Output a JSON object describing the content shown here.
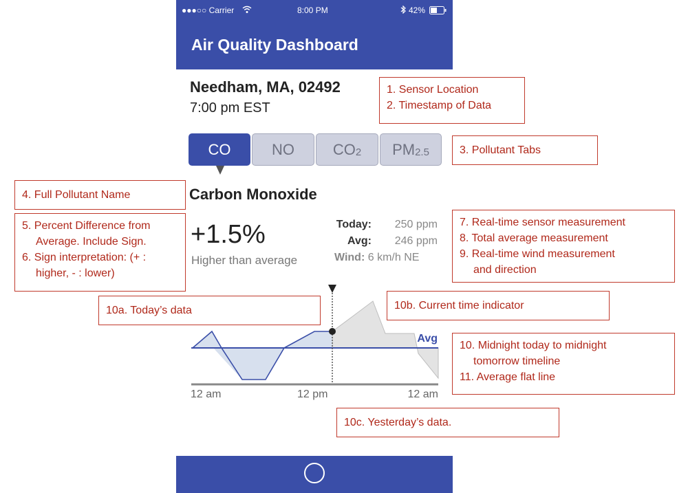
{
  "status_bar": {
    "carrier": "●●●○○ Carrier",
    "wifi_icon": "wifi-icon",
    "time": "8:00 PM",
    "battery": "42%"
  },
  "app": {
    "title": "Air Quality Dashboard"
  },
  "location": {
    "name": "Needham, MA, 02492",
    "timestamp": "7:00 pm EST"
  },
  "tabs": [
    {
      "label": "CO",
      "active": true
    },
    {
      "label": "NO",
      "active": false
    },
    {
      "label": "CO",
      "sub": "2",
      "active": false
    },
    {
      "label": "PM",
      "sub": "2.5",
      "active": false
    }
  ],
  "pollutant": {
    "full_name": "Carbon Monoxide",
    "percent_diff": "+1.5%",
    "description": "Higher than average"
  },
  "measurements": {
    "today_label": "Today:",
    "today_value": "250 ppm",
    "avg_label": "Avg:",
    "avg_value": "246 ppm",
    "wind_label": "Wind:",
    "wind_value": "6 km/h NE"
  },
  "chart": {
    "avg_label": "Avg",
    "x_labels": [
      "12 am",
      "12 pm",
      "12 am"
    ],
    "colors": {
      "today": "#3a4ea8",
      "today_fill": "#d7e0ee",
      "yesterday_fill": "#e3e3e3",
      "yesterday_line": "#bdbdbd",
      "avg": "#3a4ea8"
    }
  },
  "annotations": {
    "a1": [
      "1. Sensor Location",
      "2. Timestamp of Data"
    ],
    "a3": "3. Pollutant Tabs",
    "a4": "4. Full Pollutant Name",
    "a5": [
      "5. Percent Difference from",
      "Average. Include Sign.",
      "6. Sign interpretation: (+ :",
      "higher, - : lower)"
    ],
    "a7": [
      "7. Real-time sensor measurement",
      "8. Total average measurement",
      "9. Real-time wind measurement",
      "and direction"
    ],
    "a10a": "10a. Today’s data",
    "a10b": "10b. Current time indicator",
    "a10": [
      "10. Midnight today to midnight",
      "tomorrow timeline",
      "11. Average flat line"
    ],
    "a10c": "10c. Yesterday’s data."
  },
  "home_button": {
    "icon": "circle-home-icon"
  }
}
